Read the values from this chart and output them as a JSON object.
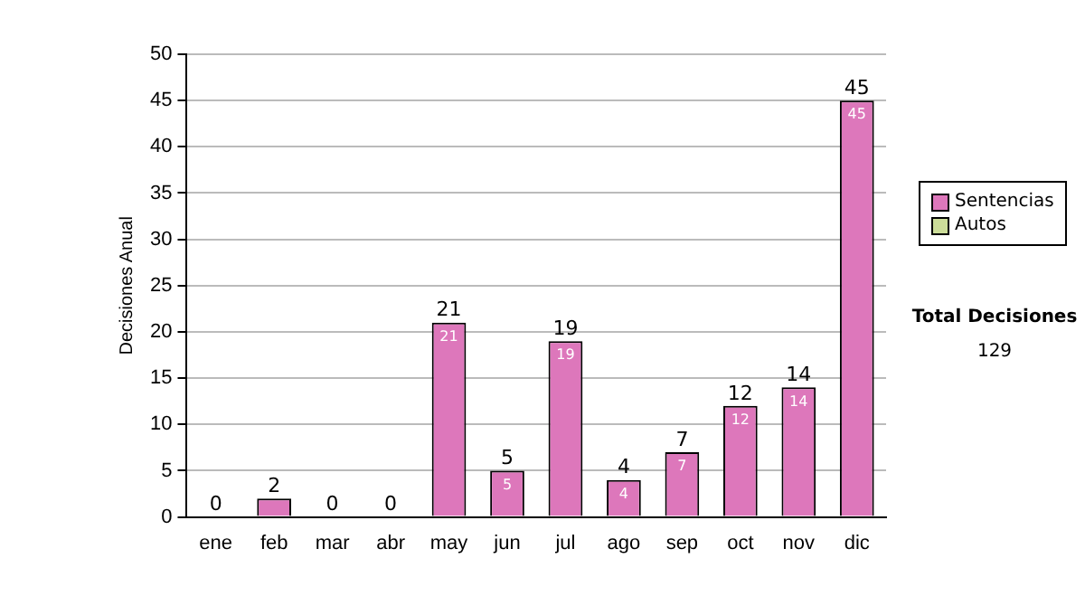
{
  "chart_data": {
    "type": "bar",
    "ylabel": "Decisiones Anual",
    "categories": [
      "ene",
      "feb",
      "mar",
      "abr",
      "may",
      "jun",
      "jul",
      "ago",
      "sep",
      "oct",
      "nov",
      "dic"
    ],
    "stacked": true,
    "series": [
      {
        "name": "Sentencias",
        "color": "#dd77bb",
        "values": [
          0,
          2,
          0,
          0,
          21,
          5,
          19,
          4,
          7,
          12,
          14,
          45
        ],
        "value_labels": [
          null,
          null,
          null,
          null,
          "21",
          "5",
          "19",
          "4",
          "7",
          "12",
          "14",
          "45"
        ]
      },
      {
        "name": "Autos",
        "color": "#ccdd99",
        "values": [
          0,
          0,
          0,
          0,
          0,
          0,
          0,
          0,
          0,
          0,
          0,
          0
        ]
      }
    ],
    "totals": [
      "0",
      "2",
      "0",
      "0",
      "21",
      "5",
      "19",
      "4",
      "7",
      "12",
      "14",
      "45"
    ],
    "ylim": [
      0,
      50
    ],
    "yticks": [
      0,
      5,
      10,
      15,
      20,
      25,
      30,
      35,
      40,
      45,
      50
    ],
    "grid": "y",
    "legend": "right",
    "annotations": [
      "Total Decisiones",
      "129"
    ]
  }
}
